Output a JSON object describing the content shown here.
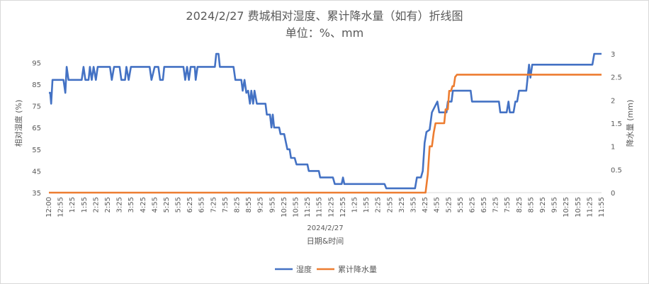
{
  "chart_data": {
    "type": "line",
    "title": "2024/2/27 费城相对湿度、累计降水量（如有）折线图",
    "subtitle": "单位：%、mm",
    "xlabel": "日期&时间",
    "x_group_label": "2024/2/27",
    "ylabel_left": "相对湿度 (%)",
    "ylabel_right": "降水量 (mm)",
    "y_left_range": [
      35,
      99
    ],
    "y_left_ticks": [
      "35",
      "45",
      "55",
      "65",
      "75",
      "85",
      "95"
    ],
    "y_right_range": [
      0,
      3
    ],
    "y_right_ticks": [
      "0",
      "0.5",
      "1",
      "1.5",
      "2",
      "2.5",
      "3"
    ],
    "x_tick_labels": [
      "12:00",
      "12:55",
      "1:25",
      "1:55",
      "2:25",
      "2:55",
      "3:25",
      "3:55",
      "4:25",
      "4:55",
      "5:25",
      "5:55",
      "6:25",
      "6:55",
      "7:25",
      "7:55",
      "8:25",
      "8:55",
      "9:25",
      "9:55",
      "10:25",
      "10:55",
      "11:25",
      "11:55",
      "12:25",
      "12:55",
      "1:25",
      "1:55",
      "2:25",
      "2:55",
      "3:25",
      "3:55",
      "4:25",
      "4:55",
      "5:25",
      "5:55",
      "6:25",
      "6:55",
      "7:25",
      "7:55",
      "8:25",
      "8:55",
      "9:25",
      "9:55",
      "10:25",
      "10:55",
      "11:25",
      "11:55"
    ],
    "legend_position": "bottom",
    "grid": false,
    "series": [
      {
        "name": "湿度",
        "axis": "left",
        "color": "#4472c4",
        "points": [
          [
            0,
            81
          ],
          [
            0.3,
            81
          ],
          [
            0.5,
            76
          ],
          [
            0.8,
            87
          ],
          [
            3.2,
            87
          ],
          [
            3.6,
            81
          ],
          [
            3.9,
            93
          ],
          [
            4.3,
            87
          ],
          [
            7.2,
            87
          ],
          [
            7.6,
            93
          ],
          [
            8,
            87
          ],
          [
            8.7,
            87
          ],
          [
            9,
            93
          ],
          [
            9.4,
            87
          ],
          [
            9.8,
            93
          ],
          [
            10.3,
            87
          ],
          [
            10.7,
            93
          ],
          [
            13.4,
            93
          ],
          [
            13.8,
            87
          ],
          [
            14.3,
            93
          ],
          [
            15.5,
            93
          ],
          [
            15.9,
            87
          ],
          [
            16.7,
            87
          ],
          [
            17,
            93
          ],
          [
            17.5,
            87
          ],
          [
            18,
            93
          ],
          [
            22.1,
            93
          ],
          [
            22.5,
            87
          ],
          [
            23.2,
            93
          ],
          [
            24,
            93
          ],
          [
            24.4,
            87
          ],
          [
            25,
            87
          ],
          [
            25.3,
            93
          ],
          [
            29.5,
            93
          ],
          [
            29.9,
            87
          ],
          [
            30.3,
            93
          ],
          [
            30.7,
            87
          ],
          [
            31.1,
            93
          ],
          [
            32,
            93
          ],
          [
            32.2,
            87
          ],
          [
            32.6,
            93
          ],
          [
            36.4,
            93
          ],
          [
            36.7,
            99
          ],
          [
            37.2,
            99
          ],
          [
            37.5,
            93
          ],
          [
            40.5,
            93
          ],
          [
            40.9,
            87
          ],
          [
            42.2,
            87
          ],
          [
            42.5,
            82
          ],
          [
            42.9,
            87
          ],
          [
            43.3,
            81
          ],
          [
            43.7,
            82
          ],
          [
            44.1,
            76
          ],
          [
            44.4,
            82
          ],
          [
            44.8,
            76
          ],
          [
            45.1,
            82
          ],
          [
            45.6,
            76
          ],
          [
            47.5,
            76
          ],
          [
            47.8,
            71
          ],
          [
            48.5,
            71
          ],
          [
            48.8,
            65
          ],
          [
            49.1,
            71
          ],
          [
            49.4,
            65
          ],
          [
            50.5,
            65
          ],
          [
            50.8,
            62
          ],
          [
            51.6,
            62
          ],
          [
            51.9,
            59
          ],
          [
            52.3,
            55
          ],
          [
            52.8,
            55
          ],
          [
            53.1,
            51
          ],
          [
            53.9,
            51
          ],
          [
            54.3,
            48
          ],
          [
            56.7,
            48
          ],
          [
            57,
            45
          ],
          [
            59.2,
            45
          ],
          [
            59.5,
            42
          ],
          [
            62.3,
            42
          ],
          [
            62.7,
            39
          ],
          [
            64.2,
            39
          ],
          [
            64.5,
            42
          ],
          [
            64.8,
            39
          ],
          [
            73.6,
            39
          ],
          [
            74,
            37
          ],
          [
            80.3,
            37
          ],
          [
            80.7,
            42
          ],
          [
            81.6,
            42
          ],
          [
            82,
            45
          ],
          [
            82.4,
            58
          ],
          [
            82.8,
            63
          ],
          [
            83.5,
            64
          ],
          [
            84,
            72
          ],
          [
            85.2,
            77
          ],
          [
            85.6,
            72
          ],
          [
            87.2,
            72
          ],
          [
            87.5,
            77
          ],
          [
            88.3,
            77
          ],
          [
            88.6,
            82
          ],
          [
            92.5,
            82
          ],
          [
            92.8,
            77
          ],
          [
            98.7,
            77
          ],
          [
            99,
            72
          ],
          [
            100.4,
            72
          ],
          [
            100.8,
            77
          ],
          [
            101.1,
            72
          ],
          [
            101.9,
            72
          ],
          [
            102.3,
            77
          ],
          [
            102.7,
            77
          ],
          [
            103.1,
            82
          ],
          [
            104.7,
            82
          ],
          [
            105,
            88
          ],
          [
            105.3,
            94
          ],
          [
            105.6,
            88
          ],
          [
            106,
            94
          ],
          [
            119.2,
            94
          ],
          [
            119.6,
            99
          ],
          [
            121.2,
            99
          ]
        ]
      },
      {
        "name": "累计降水量",
        "axis": "right",
        "color": "#ed7d31",
        "points": [
          [
            0,
            0
          ],
          [
            82.6,
            0
          ],
          [
            83.1,
            0.4
          ],
          [
            83.5,
            1
          ],
          [
            84,
            1
          ],
          [
            84.4,
            1.3
          ],
          [
            84.8,
            1.5
          ],
          [
            86.7,
            1.5
          ],
          [
            87,
            1.8
          ],
          [
            87.5,
            1.8
          ],
          [
            87.8,
            2.2
          ],
          [
            88.2,
            2.2
          ],
          [
            88.5,
            2.3
          ],
          [
            88.8,
            2.3
          ],
          [
            89.1,
            2.5
          ],
          [
            89.5,
            2.55
          ],
          [
            121.2,
            2.55
          ]
        ]
      }
    ]
  }
}
